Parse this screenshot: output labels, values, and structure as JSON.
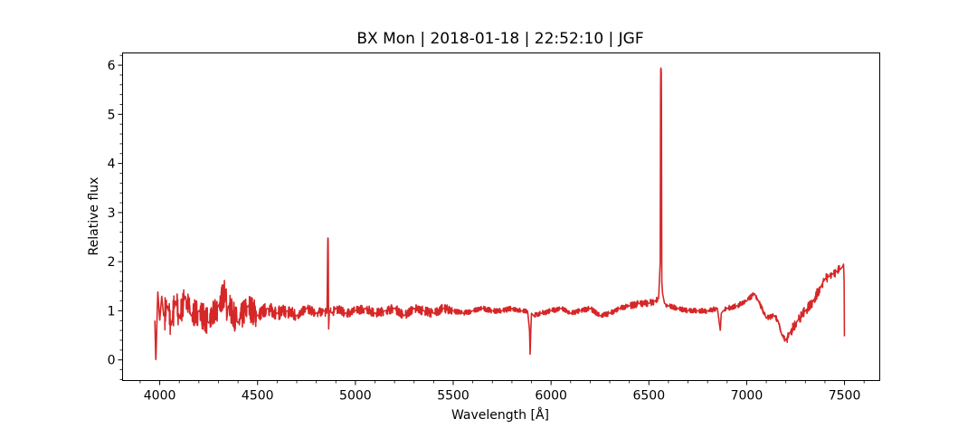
{
  "chart_data": {
    "type": "line",
    "title": "BX Mon | 2018-01-18 | 22:52:10 | JGF",
    "xlabel": "Wavelength [Å]",
    "ylabel": "Relative flux",
    "xlim": [
      3810,
      7680
    ],
    "ylim": [
      -0.42,
      6.25
    ],
    "xticks": [
      4000,
      4500,
      5000,
      5500,
      6000,
      6500,
      7000,
      7500
    ],
    "xtick_labels": [
      "4000",
      "4500",
      "5000",
      "5500",
      "6000",
      "6500",
      "7000",
      "7500"
    ],
    "yticks": [
      0,
      1,
      2,
      3,
      4,
      5,
      6
    ],
    "ytick_labels": [
      "0",
      "1",
      "2",
      "3",
      "4",
      "5",
      "6"
    ],
    "grid": false,
    "legend": "none",
    "series": [
      {
        "color": "#d62728",
        "x": [
          3975,
          3980,
          3990,
          4000,
          4010,
          4020,
          4040,
          4060,
          4080,
          4100,
          4130,
          4160,
          4200,
          4250,
          4300,
          4340,
          4342,
          4350,
          4400,
          4450,
          4500,
          4550,
          4600,
          4650,
          4700,
          4750,
          4800,
          4840,
          4855,
          4859,
          4861,
          4863,
          4867,
          4880,
          4900,
          4950,
          5000,
          5050,
          5100,
          5150,
          5200,
          5250,
          5300,
          5350,
          5400,
          5450,
          5500,
          5550,
          5600,
          5650,
          5700,
          5750,
          5800,
          5850,
          5880,
          5890,
          5893,
          5896,
          5900,
          5910,
          5950,
          6000,
          6050,
          6100,
          6150,
          6200,
          6250,
          6300,
          6350,
          6400,
          6450,
          6500,
          6530,
          6550,
          6558,
          6560,
          6562,
          6564,
          6566,
          6570,
          6580,
          6600,
          6650,
          6700,
          6750,
          6800,
          6850,
          6865,
          6870,
          6880,
          6900,
          6950,
          7000,
          7040,
          7060,
          7100,
          7140,
          7160,
          7180,
          7200,
          7220,
          7260,
          7300,
          7340,
          7380,
          7400,
          7420,
          7440,
          7460,
          7480,
          7490,
          7495,
          7498,
          7500
        ],
        "y": [
          0.8,
          -0.05,
          1.4,
          0.8,
          1.3,
          0.9,
          1.1,
          0.7,
          1.2,
          0.85,
          1.3,
          0.9,
          1.0,
          0.75,
          1.1,
          1.45,
          0.8,
          1.1,
          0.75,
          1.1,
          0.9,
          1.05,
          0.95,
          1.0,
          0.9,
          1.05,
          0.95,
          1.0,
          0.95,
          2.5,
          2.45,
          0.6,
          1.0,
          0.95,
          1.05,
          0.95,
          1.0,
          1.05,
          0.95,
          1.0,
          1.05,
          0.9,
          1.05,
          1.0,
          0.95,
          1.05,
          1.0,
          0.95,
          1.0,
          1.05,
          1.0,
          1.0,
          1.05,
          1.0,
          1.0,
          0.6,
          0.1,
          0.55,
          0.95,
          0.9,
          0.95,
          1.0,
          1.05,
          0.95,
          1.0,
          1.05,
          0.9,
          0.95,
          1.05,
          1.1,
          1.15,
          1.15,
          1.2,
          1.25,
          2.0,
          5.9,
          5.95,
          5.8,
          1.6,
          1.35,
          1.15,
          1.1,
          1.05,
          1.0,
          1.0,
          1.0,
          1.05,
          0.6,
          0.95,
          1.0,
          1.05,
          1.1,
          1.2,
          1.35,
          1.2,
          0.85,
          0.9,
          0.8,
          0.5,
          0.4,
          0.55,
          0.8,
          1.0,
          1.2,
          1.5,
          1.65,
          1.7,
          1.75,
          1.8,
          1.85,
          1.9,
          1.95,
          1.6,
          0.0
        ]
      }
    ]
  }
}
